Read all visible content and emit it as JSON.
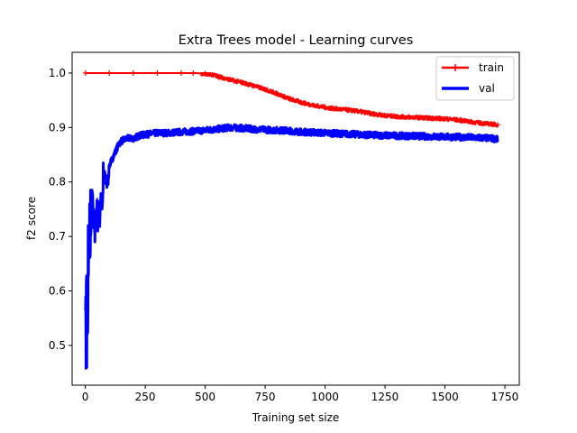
{
  "chart_data": {
    "type": "line",
    "title": "Extra Trees model - Learning curves",
    "xlabel": "Training set size",
    "ylabel": "f2 score",
    "xlim": [
      -55,
      1810
    ],
    "ylim": [
      0.427,
      1.038
    ],
    "x_ticks": [
      0,
      250,
      500,
      750,
      1000,
      1250,
      1500,
      1750
    ],
    "y_ticks": [
      0.5,
      0.6,
      0.7,
      0.8,
      0.9,
      1.0
    ],
    "x_tick_labels": [
      "0",
      "250",
      "500",
      "750",
      "1000",
      "1250",
      "1500",
      "1750"
    ],
    "y_tick_labels": [
      "0.5",
      "0.6",
      "0.7",
      "0.8",
      "0.9",
      "1.0"
    ],
    "grid": false,
    "legend": {
      "position": "top-right"
    },
    "series": [
      {
        "name": "train",
        "color": "#ff0000",
        "marker": "+",
        "x": [
          1,
          100,
          200,
          300,
          400,
          450,
          500,
          530,
          560,
          600,
          650,
          700,
          750,
          800,
          850,
          900,
          950,
          1000,
          1050,
          1100,
          1150,
          1200,
          1250,
          1300,
          1350,
          1400,
          1450,
          1500,
          1550,
          1600,
          1650,
          1700,
          1720
        ],
        "values": [
          1.0,
          1.0,
          1.0,
          1.0,
          1.0,
          1.0,
          0.999,
          0.997,
          0.993,
          0.988,
          0.983,
          0.977,
          0.97,
          0.962,
          0.953,
          0.946,
          0.941,
          0.937,
          0.934,
          0.932,
          0.929,
          0.925,
          0.922,
          0.92,
          0.919,
          0.918,
          0.917,
          0.916,
          0.914,
          0.911,
          0.908,
          0.906,
          0.905
        ],
        "noise": 0.004
      },
      {
        "name": "val",
        "color": "#0000ff",
        "marker": "none",
        "x": [
          1,
          5,
          10,
          15,
          20,
          25,
          30,
          35,
          40,
          45,
          50,
          55,
          60,
          65,
          70,
          75,
          80,
          85,
          90,
          95,
          100,
          110,
          120,
          130,
          140,
          150,
          175,
          200,
          225,
          250,
          300,
          350,
          400,
          450,
          500,
          550,
          600,
          650,
          700,
          750,
          800,
          850,
          900,
          950,
          1000,
          1100,
          1200,
          1300,
          1400,
          1500,
          1600,
          1700,
          1720
        ],
        "values": [
          0.57,
          0.63,
          0.52,
          0.7,
          0.66,
          0.74,
          0.78,
          0.71,
          0.75,
          0.73,
          0.77,
          0.76,
          0.72,
          0.78,
          0.75,
          0.79,
          0.82,
          0.8,
          0.81,
          0.8,
          0.83,
          0.84,
          0.85,
          0.86,
          0.87,
          0.875,
          0.88,
          0.88,
          0.885,
          0.887,
          0.89,
          0.89,
          0.892,
          0.893,
          0.895,
          0.897,
          0.9,
          0.899,
          0.897,
          0.896,
          0.895,
          0.894,
          0.892,
          0.891,
          0.89,
          0.888,
          0.886,
          0.885,
          0.884,
          0.883,
          0.882,
          0.88,
          0.878
        ],
        "noise": 0.006,
        "spikes": [
          {
            "x": 3,
            "y": 0.458
          },
          {
            "x": 6,
            "y": 0.46
          },
          {
            "x": 12,
            "y": 0.72
          },
          {
            "x": 18,
            "y": 0.76
          },
          {
            "x": 22,
            "y": 0.785
          },
          {
            "x": 28,
            "y": 0.785
          },
          {
            "x": 40,
            "y": 0.69
          },
          {
            "x": 52,
            "y": 0.71
          },
          {
            "x": 75,
            "y": 0.835
          },
          {
            "x": 90,
            "y": 0.79
          }
        ]
      }
    ]
  }
}
